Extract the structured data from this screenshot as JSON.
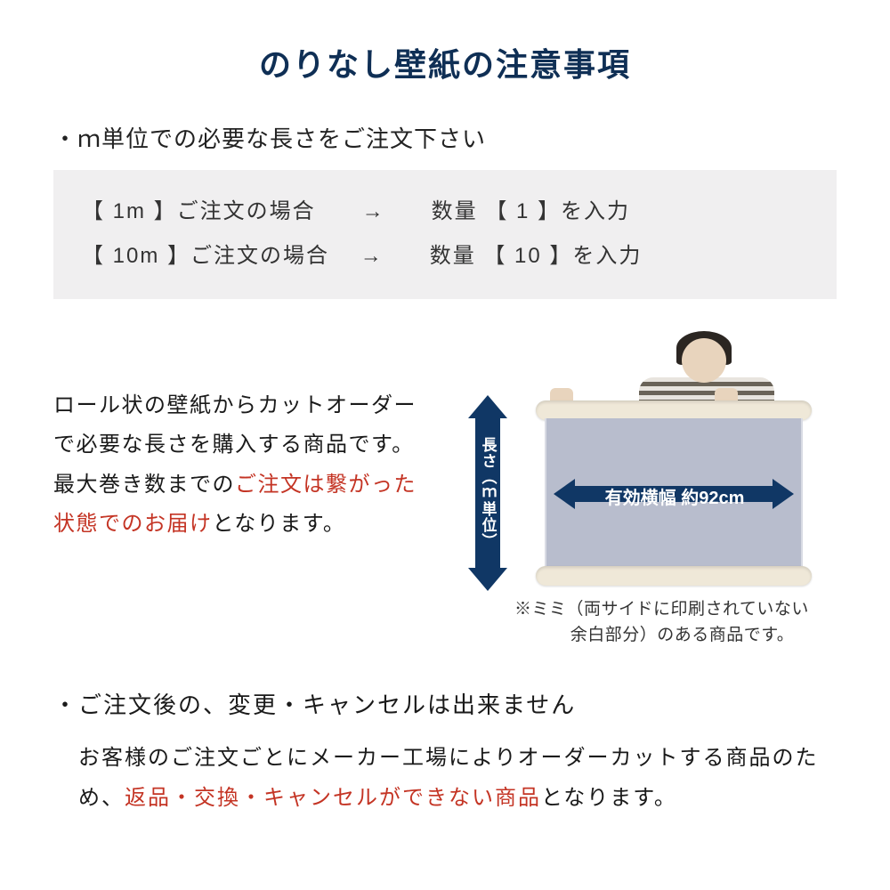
{
  "title": "のりなし壁紙の注意事項",
  "bullet1": "・ｍ単位での必要な長さをご注文下さい",
  "order_box": {
    "row1": "【 1m 】ご注文の場合　　→　　数量 【  1  】を入力",
    "row2": "【 10m 】ご注文の場合　 →　　数量 【  10  】を入力"
  },
  "description": {
    "text1": "ロール状の壁紙からカットオーダーで必要な長さを購入する商品です。最大巻き数までの",
    "text_red": "ご注文は繋がった状態でのお届け",
    "text2": "となります。"
  },
  "diagram": {
    "v_arrow_label": "長さ（ｍ単位）",
    "h_arrow_label": "有効横幅 約92cm",
    "note_line1": "※ミミ（両サイドに印刷されていない",
    "note_line2": "余白部分）のある商品です。"
  },
  "section2": {
    "head": "・ご注文後の、変更・キャンセルは出来ません",
    "body1": "お客様のご注文ごとにメーカー工場によりオーダーカットする商品のため、",
    "body_red": "返品・交換・キャンセルができない商品",
    "body2": "となります。"
  },
  "colors": {
    "title": "#0f2f55",
    "arrow": "#103765",
    "red": "#c43424",
    "box_bg": "#f0eff0",
    "paper": "#b8bdcd",
    "roll": "#efe8d8"
  }
}
